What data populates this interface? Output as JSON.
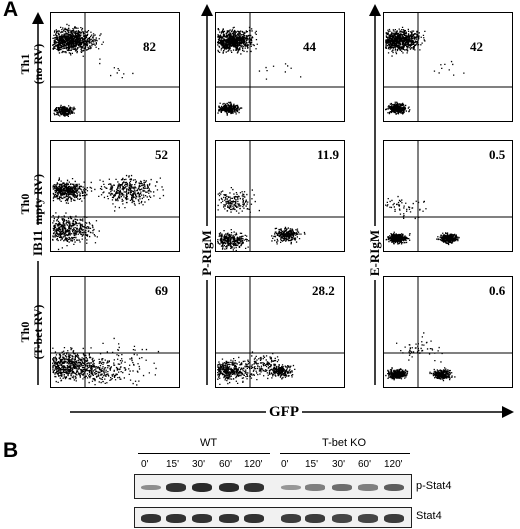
{
  "panel_a": {
    "letter": "A",
    "row_labels": [
      {
        "line1": "Th1",
        "line2": "(no RV)"
      },
      {
        "line1": "Th0",
        "line2": "(empty RV)"
      },
      {
        "line1": "Th0",
        "line2": "(T-bet RV)"
      }
    ],
    "column_y_labels": [
      "IB11",
      "P-RIgM",
      "E-RIgM"
    ],
    "x_axis_label": "GFP",
    "values": [
      [
        "82",
        "44",
        "42"
      ],
      [
        "52",
        "11.9",
        "0.5"
      ],
      [
        "69",
        "28.2",
        "0.6"
      ]
    ]
  },
  "panel_b": {
    "letter": "B",
    "groups": [
      "WT",
      "T-bet KO"
    ],
    "lanes": [
      "0'",
      "15'",
      "30'",
      "60'",
      "120'",
      "0'",
      "15'",
      "30'",
      "60'",
      "120'"
    ],
    "blots": [
      {
        "name": "p-Stat4",
        "intensity": [
          0.25,
          0.8,
          0.85,
          0.85,
          0.8,
          0.2,
          0.35,
          0.45,
          0.35,
          0.55
        ]
      },
      {
        "name": "Stat4",
        "intensity": [
          0.8,
          0.8,
          0.8,
          0.8,
          0.8,
          0.75,
          0.75,
          0.7,
          0.7,
          0.75
        ]
      }
    ]
  }
}
